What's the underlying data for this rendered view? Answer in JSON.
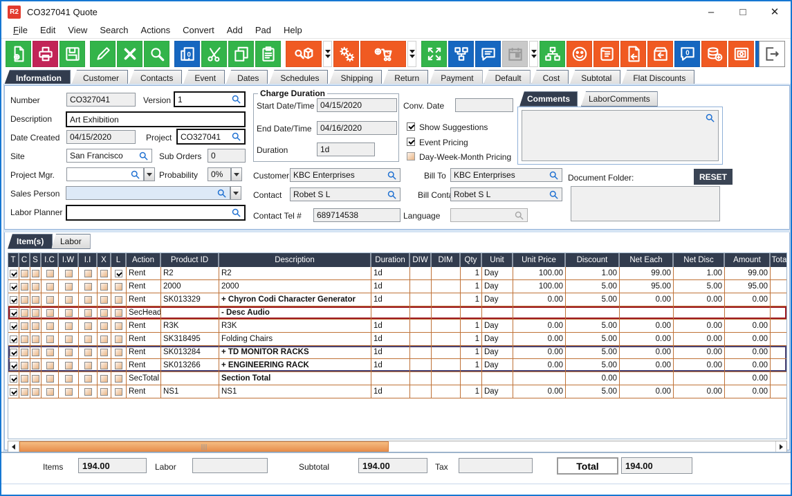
{
  "window": {
    "title": "CO327041 Quote",
    "app_badge": "R2"
  },
  "menu": [
    "File",
    "Edit",
    "View",
    "Search",
    "Actions",
    "Convert",
    "Add",
    "Pad",
    "Help"
  ],
  "toolbar": {
    "buttons": [
      {
        "name": "new-document",
        "color": "green"
      },
      {
        "name": "print",
        "color": "red"
      },
      {
        "name": "save",
        "color": "green",
        "gap": true
      },
      {
        "name": "edit",
        "color": "green"
      },
      {
        "name": "delete",
        "color": "green"
      },
      {
        "name": "find",
        "color": "green",
        "gap": true
      },
      {
        "name": "copy-zero",
        "color": "blue"
      },
      {
        "name": "cut",
        "color": "green"
      },
      {
        "name": "copy",
        "color": "green"
      },
      {
        "name": "paste",
        "color": "green",
        "gap": true
      },
      {
        "name": "product-search",
        "color": "orange",
        "wide": 1,
        "dropdown": true
      },
      {
        "name": "gears",
        "color": "orange"
      },
      {
        "name": "add-po-cart",
        "color": "orange",
        "wide": 2,
        "dropdown": true,
        "gap": true
      },
      {
        "name": "expand",
        "color": "green"
      },
      {
        "name": "workflow",
        "color": "blue"
      },
      {
        "name": "comment",
        "color": "blue"
      },
      {
        "name": "calendar",
        "color": "gray",
        "dropdown": true,
        "disabled": true
      },
      {
        "name": "tree",
        "color": "green"
      },
      {
        "name": "smiley",
        "color": "orange"
      },
      {
        "name": "notes-scroll",
        "color": "orange"
      },
      {
        "name": "return-doc",
        "color": "orange"
      },
      {
        "name": "return-box",
        "color": "orange"
      },
      {
        "name": "speech-zero",
        "color": "blue"
      },
      {
        "name": "add-money",
        "color": "orange"
      },
      {
        "name": "vault",
        "color": "orange"
      },
      {
        "name": "lightning",
        "color": "blue"
      }
    ]
  },
  "tabs": {
    "items": [
      "Information",
      "Customer",
      "Contacts",
      "Event",
      "Dates",
      "Schedules",
      "Shipping",
      "Return",
      "Payment",
      "Default",
      "Cost",
      "Subtotal",
      "Flat Discounts"
    ],
    "active": "Information"
  },
  "form": {
    "number_label": "Number",
    "number": "CO327041",
    "version_label": "Version",
    "version": "1",
    "description_label": "Description",
    "description": "Art Exhibition",
    "date_created_label": "Date Created",
    "date_created": "04/15/2020",
    "project_label": "Project",
    "project": "CO327041",
    "site_label": "Site",
    "site": "San Francisco",
    "sub_orders_label": "Sub Orders",
    "sub_orders": "0",
    "project_mgr_label": "Project Mgr.",
    "project_mgr": "",
    "probability_label": "Probability",
    "probability": "0%",
    "sales_person_label": "Sales Person",
    "sales_person": "",
    "labor_planner_label": "Labor Planner",
    "labor_planner": "",
    "charge_duration_legend": "Charge Duration",
    "start_label": "Start Date/Time",
    "start": "04/15/2020",
    "end_label": "End Date/Time",
    "end": "04/16/2020",
    "duration_label": "Duration",
    "duration": "1d",
    "conv_date_label": "Conv. Date",
    "conv_date": "",
    "checkboxes": [
      {
        "label": "Show Suggestions",
        "checked": true
      },
      {
        "label": "Event Pricing",
        "checked": true
      },
      {
        "label": "Day-Week-Month Pricing",
        "checked": false
      }
    ],
    "customer_label": "Customer",
    "customer": "KBC Enterprises",
    "bill_to_label": "Bill To",
    "bill_to": "KBC Enterprises",
    "contact_label": "Contact",
    "contact": "Robet S L",
    "bill_contact_label": "Bill Contact",
    "bill_contact": "Robet S L",
    "contact_tel_label": "Contact Tel #",
    "contact_tel": "689714538",
    "language_label": "Language",
    "language": ""
  },
  "comments": {
    "tabs": [
      "Comments",
      "LaborComments"
    ],
    "active": "Comments",
    "document_folder_label": "Document Folder:",
    "reset_label": "RESET"
  },
  "items_panel": {
    "tabs": [
      "Item(s)",
      "Labor"
    ],
    "active": "Item(s)"
  },
  "table": {
    "columns": [
      "T",
      "C",
      "S",
      "I.C",
      "I.W",
      "I.I",
      "X",
      "L",
      "Action",
      "Product ID",
      "Description",
      "Duration",
      "DIW",
      "DIM",
      "Qty",
      "Unit",
      "Unit Price",
      "Discount",
      "Net Each",
      "Net Disc",
      "Amount",
      "Tota"
    ],
    "rows": [
      {
        "cb": [
          1,
          0,
          0,
          0,
          0,
          0,
          0,
          1
        ],
        "action": "Rent",
        "product_id": "R2",
        "description": "R2",
        "bold": false,
        "duration": "1d",
        "diw": "",
        "dim": "",
        "qty": "1",
        "unit": "Day",
        "unit_price": "100.00",
        "discount": "1.00",
        "net_each": "99.00",
        "net_disc": "1.00",
        "amount": "99.00",
        "total": "",
        "style": ""
      },
      {
        "cb": [
          1,
          0,
          0,
          0,
          0,
          0,
          0,
          0
        ],
        "action": "Rent",
        "product_id": "2000",
        "description": "2000",
        "bold": false,
        "duration": "1d",
        "diw": "",
        "dim": "",
        "qty": "1",
        "unit": "Day",
        "unit_price": "100.00",
        "discount": "5.00",
        "net_each": "95.00",
        "net_disc": "5.00",
        "amount": "95.00",
        "total": "",
        "style": ""
      },
      {
        "cb": [
          1,
          0,
          0,
          0,
          0,
          0,
          0,
          0
        ],
        "action": "Rent",
        "product_id": "SK013329",
        "description": "+  Chyron Codi Character Generator",
        "bold": true,
        "duration": "1d",
        "diw": "",
        "dim": "",
        "qty": "1",
        "unit": "Day",
        "unit_price": "0.00",
        "discount": "5.00",
        "net_each": "0.00",
        "net_disc": "0.00",
        "amount": "0.00",
        "total": "",
        "style": ""
      },
      {
        "cb": [
          1,
          0,
          0,
          0,
          0,
          0,
          0,
          0
        ],
        "action": "SecHead",
        "product_id": "",
        "description": "-  Desc Audio",
        "bold": true,
        "duration": "",
        "diw": "",
        "dim": "",
        "qty": "",
        "unit": "",
        "unit_price": "",
        "discount": "",
        "net_each": "",
        "net_disc": "",
        "amount": "",
        "total": "",
        "style": "sec-red"
      },
      {
        "cb": [
          1,
          0,
          0,
          0,
          0,
          0,
          0,
          0
        ],
        "action": "Rent",
        "product_id": "R3K",
        "description": "R3K",
        "bold": false,
        "duration": "1d",
        "diw": "",
        "dim": "",
        "qty": "1",
        "unit": "Day",
        "unit_price": "0.00",
        "discount": "5.00",
        "net_each": "0.00",
        "net_disc": "0.00",
        "amount": "0.00",
        "total": "",
        "style": ""
      },
      {
        "cb": [
          1,
          0,
          0,
          0,
          0,
          0,
          0,
          0
        ],
        "action": "Rent",
        "product_id": "SK318495",
        "description": "Folding Chairs",
        "bold": false,
        "duration": "1d",
        "diw": "",
        "dim": "",
        "qty": "1",
        "unit": "Day",
        "unit_price": "0.00",
        "discount": "5.00",
        "net_each": "0.00",
        "net_disc": "0.00",
        "amount": "0.00",
        "total": "",
        "style": ""
      },
      {
        "cb": [
          1,
          0,
          0,
          0,
          0,
          0,
          0,
          0
        ],
        "action": "Rent",
        "product_id": "SK013284",
        "description": "+  TD MONITOR RACKS",
        "bold": true,
        "duration": "1d",
        "diw": "",
        "dim": "",
        "qty": "1",
        "unit": "Day",
        "unit_price": "0.00",
        "discount": "5.00",
        "net_each": "0.00",
        "net_disc": "0.00",
        "amount": "0.00",
        "total": "",
        "style": "grp-top"
      },
      {
        "cb": [
          1,
          0,
          0,
          0,
          0,
          0,
          0,
          0
        ],
        "action": "Rent",
        "product_id": "SK013266",
        "description": "+  ENGINEERING RACK",
        "bold": true,
        "duration": "1d",
        "diw": "",
        "dim": "",
        "qty": "1",
        "unit": "Day",
        "unit_price": "0.00",
        "discount": "5.00",
        "net_each": "0.00",
        "net_disc": "0.00",
        "amount": "0.00",
        "total": "",
        "style": "grp-bot"
      },
      {
        "cb": [
          1,
          0,
          0,
          0,
          0,
          0,
          0,
          0
        ],
        "action": "SecTotal",
        "product_id": "",
        "description": "Section Total",
        "bold": true,
        "duration": "",
        "diw": "",
        "dim": "",
        "qty": "",
        "unit": "",
        "unit_price": "",
        "discount": "0.00",
        "net_each": "",
        "net_disc": "",
        "amount": "0.00",
        "total": "",
        "style": ""
      },
      {
        "cb": [
          1,
          0,
          0,
          0,
          0,
          0,
          0,
          0
        ],
        "action": "Rent",
        "product_id": "NS1",
        "description": "NS1",
        "bold": false,
        "duration": "1d",
        "diw": "",
        "dim": "",
        "qty": "1",
        "unit": "Day",
        "unit_price": "0.00",
        "discount": "5.00",
        "net_each": "0.00",
        "net_disc": "0.00",
        "amount": "0.00",
        "total": "",
        "style": ""
      }
    ]
  },
  "totals": {
    "items_label": "Items",
    "items": "194.00",
    "labor_label": "Labor",
    "labor": "",
    "subtotal_label": "Subtotal",
    "subtotal": "194.00",
    "tax_label": "Tax",
    "tax": "",
    "total_label": "Total",
    "total": "194.00"
  },
  "colors": {
    "accent_orange": "#f05a22",
    "accent_green": "#33b44a",
    "accent_blue": "#1667c0",
    "accent_red": "#c22457",
    "header_dark": "#323c4e",
    "grid_border": "#bf7136",
    "sechead_border": "#9e1b22",
    "group_border": "#4a4273",
    "scroll_thumb": "#e88f4e"
  }
}
